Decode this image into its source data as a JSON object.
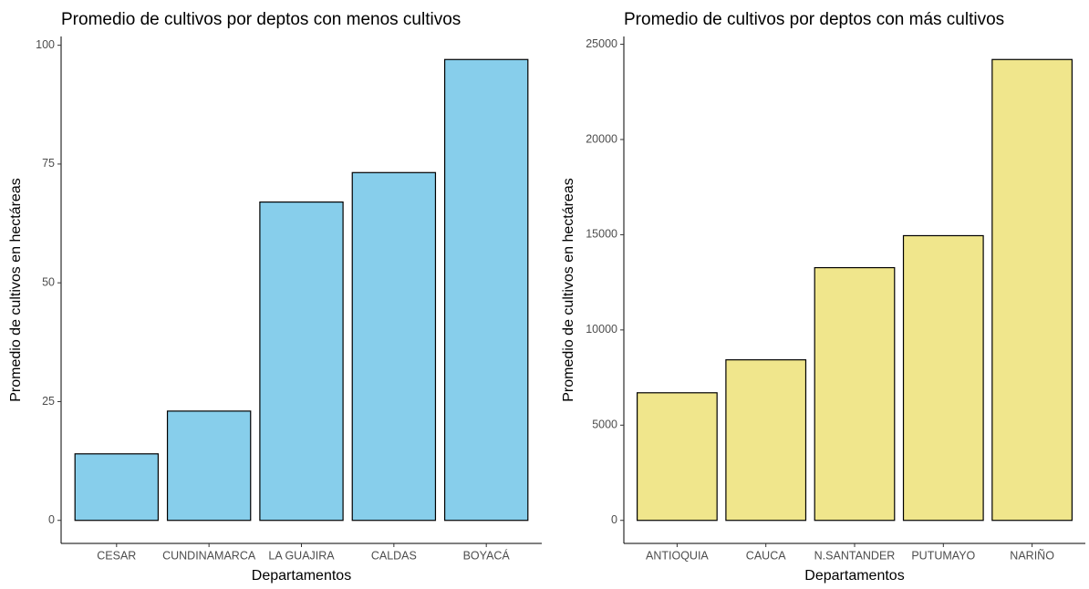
{
  "chart_data": [
    {
      "type": "bar",
      "title": "Promedio de cultivos por deptos con menos cultivos",
      "x_label": "Departamentos",
      "y_label": "Promedio de cultivos en hectáreas",
      "categories": [
        "CESAR",
        "CUNDINAMARCA",
        "LA GUAJIRA",
        "CALDAS",
        "BOYACÁ"
      ],
      "values": [
        14,
        23,
        67,
        73.2,
        97
      ],
      "color": "#87CEEB",
      "ylim": [
        -4.85,
        101.85
      ],
      "yticks": [
        0,
        25,
        50,
        75,
        100
      ],
      "grid": false
    },
    {
      "type": "bar",
      "title": "Promedio de cultivos por deptos con más cultivos",
      "x_label": "Departamentos",
      "y_label": "Promedio de cultivos en hectáreas",
      "categories": [
        "ANTIOQUIA",
        "CAUCA",
        "N.SANTANDER",
        "PUTUMAYO",
        "NARIÑO"
      ],
      "values": [
        6700,
        8430,
        13270,
        14950,
        24200
      ],
      "color": "#F0E68C",
      "ylim": [
        -1210,
        25410
      ],
      "yticks": [
        0,
        5000,
        10000,
        15000,
        20000,
        25000
      ],
      "grid": false
    }
  ]
}
